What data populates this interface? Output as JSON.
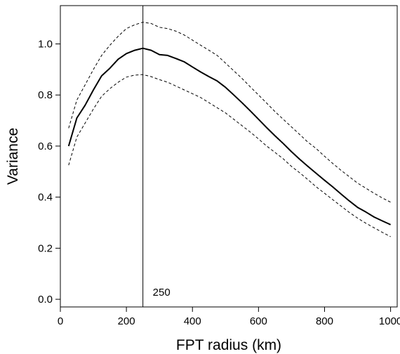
{
  "chart_data": {
    "type": "line",
    "xlabel": "FPT radius (km)",
    "ylabel": "Variance",
    "xlim": [
      0,
      1020
    ],
    "ylim": [
      -0.03,
      1.15
    ],
    "xticks": [
      0,
      200,
      400,
      600,
      800,
      1000
    ],
    "yticks": [
      0.0,
      0.2,
      0.4,
      0.6,
      0.8,
      1.0
    ],
    "ytick_labels": [
      "0.0",
      "0.2",
      "0.4",
      "0.6",
      "0.8",
      "1.0"
    ],
    "grid": false,
    "legend": "none",
    "vline": {
      "x": 250,
      "label": "250"
    },
    "series": [
      {
        "style": "solid",
        "x": [
          25,
          50,
          75,
          100,
          125,
          150,
          175,
          200,
          225,
          250,
          275,
          300,
          325,
          350,
          375,
          400,
          425,
          450,
          475,
          500,
          525,
          550,
          575,
          600,
          625,
          650,
          675,
          700,
          725,
          750,
          775,
          800,
          825,
          850,
          875,
          900,
          925,
          950,
          975,
          1000
        ],
        "y": [
          0.6,
          0.71,
          0.76,
          0.82,
          0.875,
          0.905,
          0.94,
          0.962,
          0.975,
          0.983,
          0.975,
          0.958,
          0.955,
          0.943,
          0.93,
          0.91,
          0.89,
          0.872,
          0.855,
          0.83,
          0.8,
          0.77,
          0.738,
          0.705,
          0.672,
          0.64,
          0.61,
          0.578,
          0.548,
          0.52,
          0.493,
          0.466,
          0.44,
          0.412,
          0.385,
          0.36,
          0.342,
          0.322,
          0.307,
          0.292
        ]
      },
      {
        "style": "dashed",
        "x": [
          25,
          50,
          75,
          100,
          125,
          150,
          175,
          200,
          225,
          250,
          275,
          300,
          325,
          350,
          375,
          400,
          425,
          450,
          475,
          500,
          525,
          550,
          575,
          600,
          625,
          650,
          675,
          700,
          725,
          750,
          775,
          800,
          825,
          850,
          875,
          900,
          925,
          950,
          975,
          1000
        ],
        "y": [
          0.67,
          0.78,
          0.84,
          0.9,
          0.955,
          0.995,
          1.03,
          1.06,
          1.075,
          1.085,
          1.08,
          1.065,
          1.06,
          1.05,
          1.035,
          1.015,
          0.995,
          0.975,
          0.955,
          0.925,
          0.895,
          0.865,
          0.832,
          0.8,
          0.768,
          0.735,
          0.705,
          0.675,
          0.645,
          0.615,
          0.59,
          0.56,
          0.532,
          0.505,
          0.48,
          0.455,
          0.435,
          0.415,
          0.397,
          0.38
        ]
      },
      {
        "style": "dashed",
        "x": [
          25,
          50,
          75,
          100,
          125,
          150,
          175,
          200,
          225,
          250,
          275,
          300,
          325,
          350,
          375,
          400,
          425,
          450,
          475,
          500,
          525,
          550,
          575,
          600,
          625,
          650,
          675,
          700,
          725,
          750,
          775,
          800,
          825,
          850,
          875,
          900,
          925,
          950,
          975,
          1000
        ],
        "y": [
          0.525,
          0.635,
          0.69,
          0.745,
          0.795,
          0.825,
          0.85,
          0.87,
          0.878,
          0.88,
          0.872,
          0.86,
          0.85,
          0.835,
          0.82,
          0.805,
          0.79,
          0.77,
          0.75,
          0.73,
          0.705,
          0.68,
          0.655,
          0.628,
          0.6,
          0.575,
          0.55,
          0.52,
          0.495,
          0.468,
          0.44,
          0.415,
          0.39,
          0.365,
          0.34,
          0.318,
          0.298,
          0.28,
          0.262,
          0.245
        ]
      }
    ]
  }
}
